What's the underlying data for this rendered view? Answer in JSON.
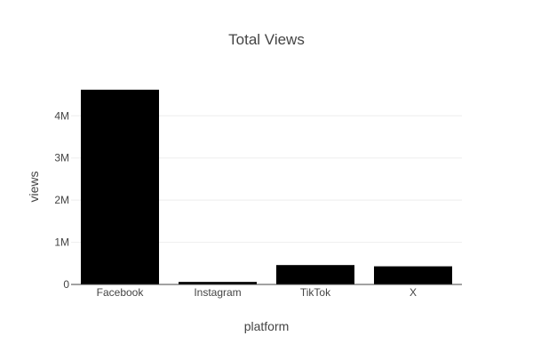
{
  "chart_data": {
    "type": "bar",
    "title": "Total Views",
    "xlabel": "platform",
    "ylabel": "views",
    "categories": [
      "Facebook",
      "Instagram",
      "TikTok",
      "X"
    ],
    "values": [
      4620000,
      60000,
      460000,
      430000
    ],
    "ylim": [
      0,
      4850000
    ],
    "y_ticks": [
      {
        "value": 0,
        "label": "0"
      },
      {
        "value": 1000000,
        "label": "1M"
      },
      {
        "value": 2000000,
        "label": "2M"
      },
      {
        "value": 3000000,
        "label": "3M"
      },
      {
        "value": 4000000,
        "label": "4M"
      }
    ],
    "bar_color": "#000000",
    "grid": true,
    "grid_color": "#eeeeee",
    "text_color": "#444444"
  }
}
